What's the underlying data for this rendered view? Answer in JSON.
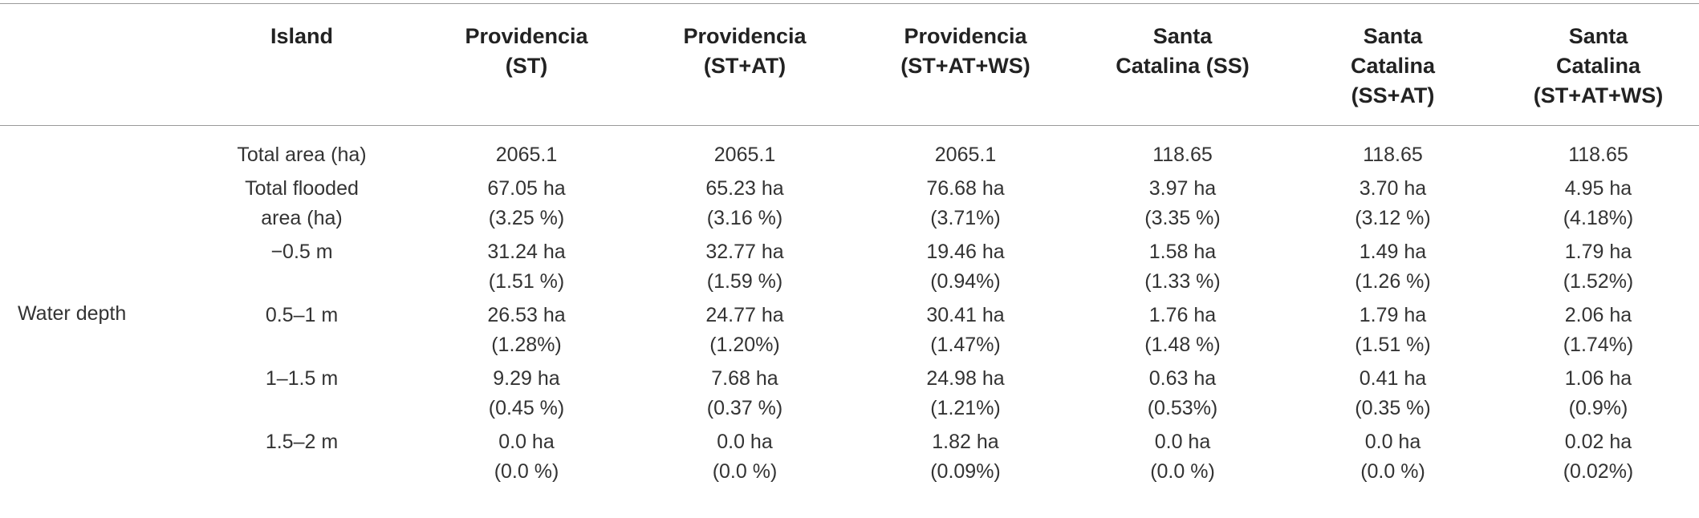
{
  "columns": [
    {
      "lines": [
        ""
      ]
    },
    {
      "lines": [
        "Island"
      ]
    },
    {
      "lines": [
        "Providencia",
        "(ST)"
      ]
    },
    {
      "lines": [
        "Providencia",
        "(ST+AT)"
      ]
    },
    {
      "lines": [
        "Providencia",
        "(ST+AT+WS)"
      ]
    },
    {
      "lines": [
        "Santa",
        "Catalina  (SS)"
      ]
    },
    {
      "lines": [
        "Santa",
        "Catalina",
        "(SS+AT)"
      ]
    },
    {
      "lines": [
        "Santa",
        "Catalina",
        "(ST+AT+WS)"
      ]
    }
  ],
  "section_label": "Water depth",
  "rows": [
    {
      "label": [
        "Total area (ha)"
      ],
      "cells": [
        [
          "2065.1"
        ],
        [
          "2065.1"
        ],
        [
          "2065.1"
        ],
        [
          "118.65"
        ],
        [
          "118.65"
        ],
        [
          "118.65"
        ]
      ]
    },
    {
      "label": [
        "Total flooded",
        "area (ha)"
      ],
      "cells": [
        [
          "67.05 ha",
          "(3.25 %)"
        ],
        [
          "65.23 ha",
          "(3.16 %)"
        ],
        [
          "76.68 ha",
          "(3.71%)"
        ],
        [
          "3.97 ha",
          "(3.35 %)"
        ],
        [
          "3.70 ha",
          "(3.12 %)"
        ],
        [
          "4.95 ha",
          "(4.18%)"
        ]
      ]
    },
    {
      "label": [
        "−0.5 m"
      ],
      "cells": [
        [
          "31.24 ha",
          "(1.51 %)"
        ],
        [
          "32.77 ha",
          "(1.59 %)"
        ],
        [
          "19.46 ha",
          "(0.94%)"
        ],
        [
          "1.58 ha",
          "(1.33 %)"
        ],
        [
          "1.49 ha",
          "(1.26 %)"
        ],
        [
          "1.79 ha",
          "(1.52%)"
        ]
      ]
    },
    {
      "label": [
        "0.5–1 m"
      ],
      "cells": [
        [
          "26.53 ha",
          "(1.28%)"
        ],
        [
          "24.77 ha",
          "(1.20%)"
        ],
        [
          "30.41 ha",
          "(1.47%)"
        ],
        [
          "1.76 ha",
          "(1.48 %)"
        ],
        [
          "1.79 ha",
          "(1.51 %)"
        ],
        [
          "2.06 ha",
          "(1.74%)"
        ]
      ]
    },
    {
      "label": [
        "1–1.5 m"
      ],
      "cells": [
        [
          "9.29 ha",
          "(0.45 %)"
        ],
        [
          "7.68 ha",
          "(0.37 %)"
        ],
        [
          "24.98 ha",
          "(1.21%)"
        ],
        [
          "0.63 ha",
          "(0.53%)"
        ],
        [
          "0.41 ha",
          "(0.35 %)"
        ],
        [
          "1.06 ha",
          "(0.9%)"
        ]
      ]
    },
    {
      "label": [
        "1.5–2 m"
      ],
      "cells": [
        [
          "0.0 ha",
          "(0.0 %)"
        ],
        [
          "0.0 ha",
          "(0.0 %)"
        ],
        [
          "1.82 ha",
          "(0.09%)"
        ],
        [
          "0.0 ha",
          "(0.0 %)"
        ],
        [
          "0.0 ha",
          "(0.0 %)"
        ],
        [
          "0.02 ha",
          "(0.02%)"
        ]
      ]
    }
  ]
}
